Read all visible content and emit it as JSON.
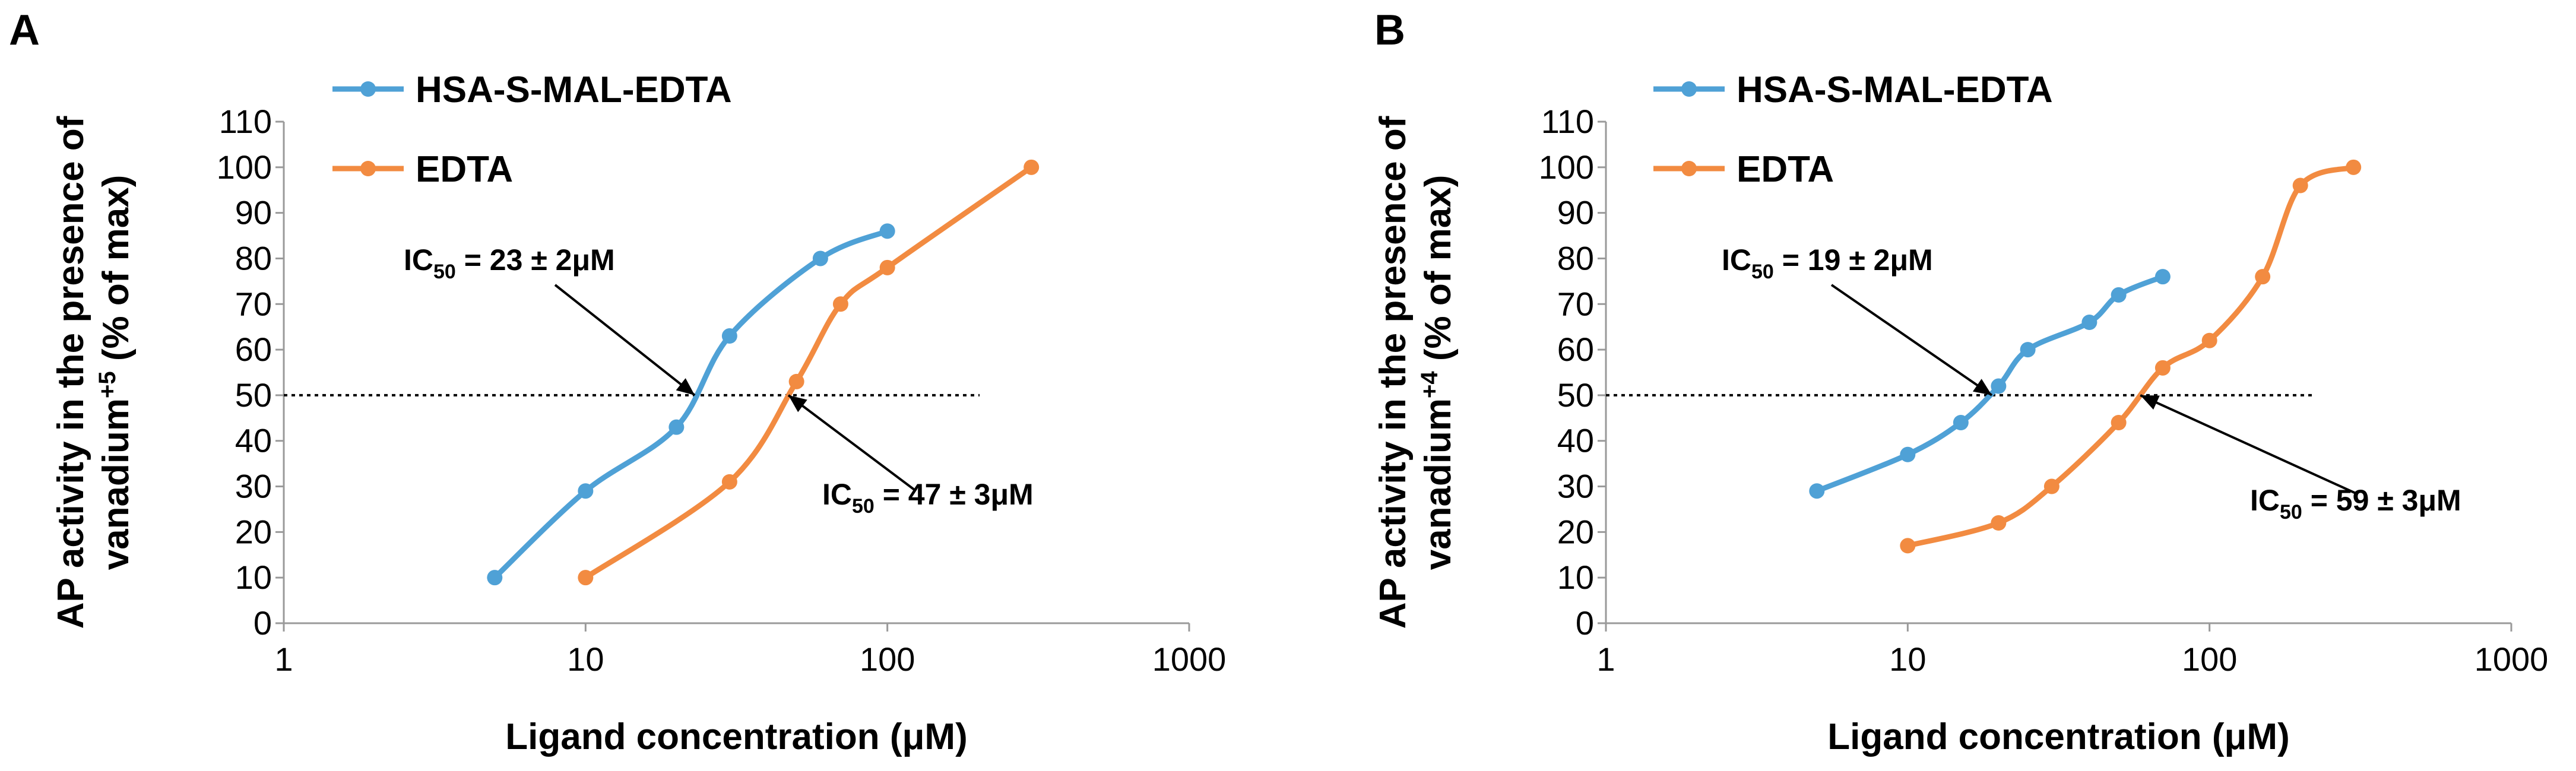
{
  "chart_data": [
    {
      "panel": "A",
      "type": "line",
      "xscale": "log",
      "xlim": [
        1,
        1000
      ],
      "ylim": [
        0,
        110
      ],
      "xticks": [
        "1",
        "10",
        "100",
        "1000"
      ],
      "yticks": [
        "0",
        "10",
        "20",
        "30",
        "40",
        "50",
        "60",
        "70",
        "80",
        "90",
        "100",
        "110"
      ],
      "xlabel": "Ligand concentration (μM)",
      "ylabel_line1": "AP activity in the presence of",
      "ylabel_line2_main": "vanadium",
      "ylabel_line2_sup": "+5",
      "ylabel_line2_end": " (% of max)",
      "reference_line_y": 50,
      "legend_position": "top-left",
      "series": [
        {
          "name": "HSA-S-MAL-EDTA",
          "color": "#4fa1d6",
          "x": [
            5,
            10,
            20,
            30,
            60,
            100
          ],
          "y": [
            10,
            29,
            43,
            63,
            80,
            86
          ]
        },
        {
          "name": "EDTA",
          "color": "#f28b41",
          "x": [
            10,
            30,
            50,
            70,
            100,
            300
          ],
          "y": [
            10,
            31,
            53,
            70,
            78,
            100
          ]
        }
      ],
      "annotations": [
        {
          "pre": "IC",
          "sub": "50",
          "post": " = 23 ± 2μM",
          "target_x": 23,
          "target_y": 50
        },
        {
          "pre": "IC",
          "sub": "50",
          "post": " = 47 ± 3μM",
          "target_x": 47,
          "target_y": 50
        }
      ]
    },
    {
      "panel": "B",
      "type": "line",
      "xscale": "log",
      "xlim": [
        1,
        1000
      ],
      "ylim": [
        0,
        110
      ],
      "xticks": [
        "1",
        "10",
        "100",
        "1000"
      ],
      "yticks": [
        "0",
        "10",
        "20",
        "30",
        "40",
        "50",
        "60",
        "70",
        "80",
        "90",
        "100",
        "110"
      ],
      "xlabel": "Ligand concentration (μM)",
      "ylabel_line1": "AP activity in the presence of",
      "ylabel_line2_main": "vanadium",
      "ylabel_line2_sup": "+4",
      "ylabel_line2_end": " (% of max)",
      "reference_line_y": 50,
      "legend_position": "top-left",
      "series": [
        {
          "name": "HSA-S-MAL-EDTA",
          "color": "#4fa1d6",
          "x": [
            5,
            10,
            15,
            20,
            25,
            40,
            50,
            70
          ],
          "y": [
            29,
            37,
            44,
            52,
            60,
            66,
            72,
            76
          ]
        },
        {
          "name": "EDTA",
          "color": "#f28b41",
          "x": [
            10,
            20,
            30,
            50,
            70,
            100,
            150,
            200,
            300
          ],
          "y": [
            17,
            22,
            30,
            44,
            56,
            62,
            76,
            96,
            100
          ]
        }
      ],
      "annotations": [
        {
          "pre": "IC",
          "sub": "50",
          "post": " = 19 ± 2μM",
          "target_x": 19,
          "target_y": 50
        },
        {
          "pre": "IC",
          "sub": "50",
          "post": " = 59 ± 3μM",
          "target_x": 59,
          "target_y": 50
        }
      ]
    }
  ]
}
